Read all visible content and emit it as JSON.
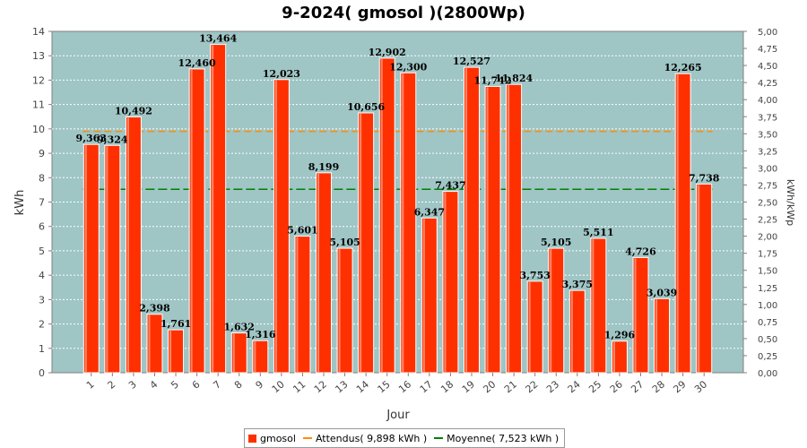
{
  "title": "9-2024( gmosol )(2800Wp)",
  "colors": {
    "plot_bg": "#9fc5c5",
    "bar": "#ff3000",
    "bar_edge": "#ffffff",
    "expected": "#ff8c00",
    "average": "#008000"
  },
  "chart_data": {
    "type": "bar",
    "title": "9-2024( gmosol )(2800Wp)",
    "xlabel": "Jour",
    "ylabel": "kWh",
    "y2label": "kWh/kWp",
    "ylim": [
      0,
      14
    ],
    "y2lim": [
      0,
      5
    ],
    "yticks": [
      0,
      1,
      2,
      3,
      4,
      5,
      6,
      7,
      8,
      9,
      10,
      11,
      12,
      13,
      14
    ],
    "y2ticks": [
      "0,00",
      "0,25",
      "0,50",
      "0,75",
      "1,00",
      "1,25",
      "1,50",
      "1,75",
      "2,00",
      "2,25",
      "2,50",
      "2,75",
      "3,00",
      "3,25",
      "3,50",
      "3,75",
      "4,00",
      "4,25",
      "4,50",
      "4,75",
      "5,00"
    ],
    "categories": [
      "1",
      "2",
      "3",
      "4",
      "5",
      "6",
      "7",
      "8",
      "9",
      "10",
      "11",
      "12",
      "13",
      "14",
      "15",
      "16",
      "17",
      "18",
      "19",
      "20",
      "21",
      "22",
      "23",
      "24",
      "25",
      "26",
      "27",
      "28",
      "29",
      "30"
    ],
    "values": [
      9.363,
      9.324,
      10.492,
      2.398,
      1.761,
      12.46,
      13.464,
      1.632,
      1.316,
      12.023,
      5.601,
      8.199,
      5.105,
      10.656,
      12.902,
      12.3,
      6.347,
      7.437,
      12.527,
      11.742,
      11.824,
      3.753,
      5.105,
      3.375,
      5.511,
      1.296,
      4.726,
      3.039,
      12.265,
      7.738
    ],
    "value_labels": [
      "9,363",
      "9,324",
      "10,492",
      "2,398",
      "1,761",
      "12,460",
      "13,464",
      "1,632",
      "1,316",
      "12,023",
      "5,601",
      "8,199",
      "5,105",
      "10,656",
      "12,902",
      "12,300",
      "6,347",
      "7,437",
      "12,527",
      "11,742",
      "11,824",
      "3,753",
      "5,105",
      "3,375",
      "5,511",
      "1,296",
      "4,726",
      "3,039",
      "12,265",
      "7,738"
    ],
    "lines": [
      {
        "name": "Attendus( 9,898 kWh )",
        "value": 9.898
      },
      {
        "name": "Moyenne( 7,523 kWh )",
        "value": 7.523
      }
    ],
    "grid": true,
    "legend": "bottom"
  },
  "legend": {
    "series": "gmosol",
    "expected": "Attendus( 9,898 kWh )",
    "average": "Moyenne( 7,523 kWh )"
  }
}
